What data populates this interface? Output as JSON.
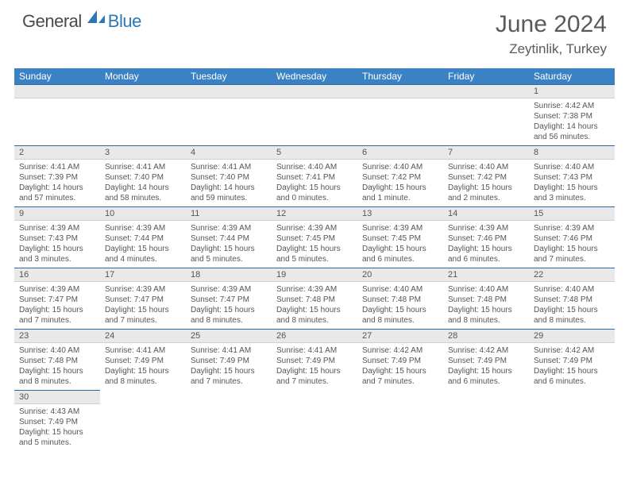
{
  "logo": {
    "part1": "General",
    "part2": "Blue"
  },
  "title": {
    "month": "June 2024",
    "location": "Zeytinlik, Turkey"
  },
  "colors": {
    "header_bg": "#3b82c4",
    "header_text": "#ffffff",
    "daynum_bg": "#e9e9e9",
    "rule": "#2b6aa8",
    "logo_blue": "#2b77b8",
    "text": "#555555"
  },
  "weekdays": [
    "Sunday",
    "Monday",
    "Tuesday",
    "Wednesday",
    "Thursday",
    "Friday",
    "Saturday"
  ],
  "layout": {
    "columns": 7,
    "rows": 6,
    "first_day_column": 6
  },
  "days": [
    {
      "n": 1,
      "sr": "4:42 AM",
      "ss": "7:38 PM",
      "dl": "14 hours and 56 minutes."
    },
    {
      "n": 2,
      "sr": "4:41 AM",
      "ss": "7:39 PM",
      "dl": "14 hours and 57 minutes."
    },
    {
      "n": 3,
      "sr": "4:41 AM",
      "ss": "7:40 PM",
      "dl": "14 hours and 58 minutes."
    },
    {
      "n": 4,
      "sr": "4:41 AM",
      "ss": "7:40 PM",
      "dl": "14 hours and 59 minutes."
    },
    {
      "n": 5,
      "sr": "4:40 AM",
      "ss": "7:41 PM",
      "dl": "15 hours and 0 minutes."
    },
    {
      "n": 6,
      "sr": "4:40 AM",
      "ss": "7:42 PM",
      "dl": "15 hours and 1 minute."
    },
    {
      "n": 7,
      "sr": "4:40 AM",
      "ss": "7:42 PM",
      "dl": "15 hours and 2 minutes."
    },
    {
      "n": 8,
      "sr": "4:40 AM",
      "ss": "7:43 PM",
      "dl": "15 hours and 3 minutes."
    },
    {
      "n": 9,
      "sr": "4:39 AM",
      "ss": "7:43 PM",
      "dl": "15 hours and 3 minutes."
    },
    {
      "n": 10,
      "sr": "4:39 AM",
      "ss": "7:44 PM",
      "dl": "15 hours and 4 minutes."
    },
    {
      "n": 11,
      "sr": "4:39 AM",
      "ss": "7:44 PM",
      "dl": "15 hours and 5 minutes."
    },
    {
      "n": 12,
      "sr": "4:39 AM",
      "ss": "7:45 PM",
      "dl": "15 hours and 5 minutes."
    },
    {
      "n": 13,
      "sr": "4:39 AM",
      "ss": "7:45 PM",
      "dl": "15 hours and 6 minutes."
    },
    {
      "n": 14,
      "sr": "4:39 AM",
      "ss": "7:46 PM",
      "dl": "15 hours and 6 minutes."
    },
    {
      "n": 15,
      "sr": "4:39 AM",
      "ss": "7:46 PM",
      "dl": "15 hours and 7 minutes."
    },
    {
      "n": 16,
      "sr": "4:39 AM",
      "ss": "7:47 PM",
      "dl": "15 hours and 7 minutes."
    },
    {
      "n": 17,
      "sr": "4:39 AM",
      "ss": "7:47 PM",
      "dl": "15 hours and 7 minutes."
    },
    {
      "n": 18,
      "sr": "4:39 AM",
      "ss": "7:47 PM",
      "dl": "15 hours and 8 minutes."
    },
    {
      "n": 19,
      "sr": "4:39 AM",
      "ss": "7:48 PM",
      "dl": "15 hours and 8 minutes."
    },
    {
      "n": 20,
      "sr": "4:40 AM",
      "ss": "7:48 PM",
      "dl": "15 hours and 8 minutes."
    },
    {
      "n": 21,
      "sr": "4:40 AM",
      "ss": "7:48 PM",
      "dl": "15 hours and 8 minutes."
    },
    {
      "n": 22,
      "sr": "4:40 AM",
      "ss": "7:48 PM",
      "dl": "15 hours and 8 minutes."
    },
    {
      "n": 23,
      "sr": "4:40 AM",
      "ss": "7:48 PM",
      "dl": "15 hours and 8 minutes."
    },
    {
      "n": 24,
      "sr": "4:41 AM",
      "ss": "7:49 PM",
      "dl": "15 hours and 8 minutes."
    },
    {
      "n": 25,
      "sr": "4:41 AM",
      "ss": "7:49 PM",
      "dl": "15 hours and 7 minutes."
    },
    {
      "n": 26,
      "sr": "4:41 AM",
      "ss": "7:49 PM",
      "dl": "15 hours and 7 minutes."
    },
    {
      "n": 27,
      "sr": "4:42 AM",
      "ss": "7:49 PM",
      "dl": "15 hours and 7 minutes."
    },
    {
      "n": 28,
      "sr": "4:42 AM",
      "ss": "7:49 PM",
      "dl": "15 hours and 6 minutes."
    },
    {
      "n": 29,
      "sr": "4:42 AM",
      "ss": "7:49 PM",
      "dl": "15 hours and 6 minutes."
    },
    {
      "n": 30,
      "sr": "4:43 AM",
      "ss": "7:49 PM",
      "dl": "15 hours and 5 minutes."
    }
  ],
  "labels": {
    "sunrise": "Sunrise:",
    "sunset": "Sunset:",
    "daylight": "Daylight:"
  }
}
